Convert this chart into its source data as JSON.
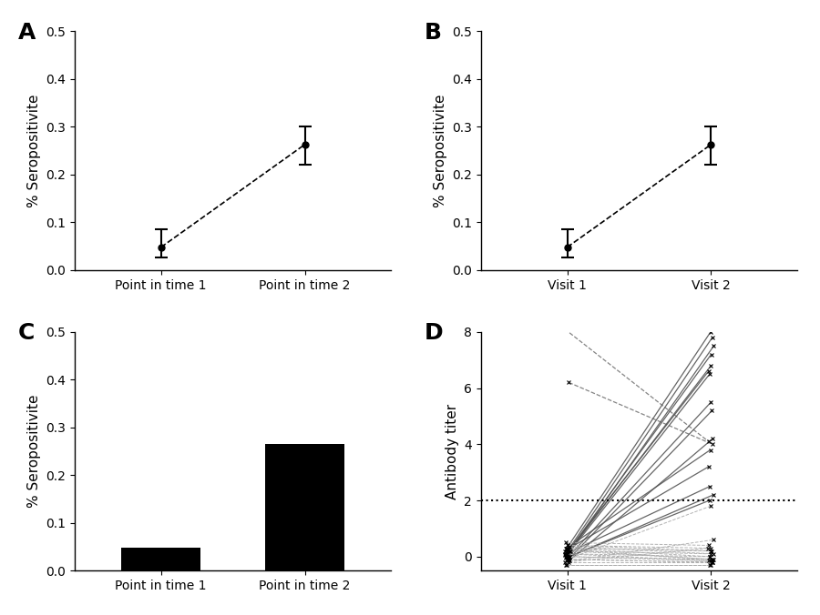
{
  "panel_A": {
    "label": "A",
    "x": [
      1,
      2
    ],
    "y": [
      0.048,
      0.263
    ],
    "yerr_lower": [
      0.022,
      0.042
    ],
    "yerr_upper": [
      0.038,
      0.038
    ],
    "xtick_labels": [
      "Point in time 1",
      "Point in time 2"
    ],
    "ylabel": "% Seropositivite",
    "ylim": [
      0,
      0.5
    ],
    "yticks": [
      0,
      0.1,
      0.2,
      0.3,
      0.4,
      0.5
    ]
  },
  "panel_B": {
    "label": "B",
    "x": [
      1,
      2
    ],
    "y": [
      0.048,
      0.263
    ],
    "yerr_lower": [
      0.022,
      0.042
    ],
    "yerr_upper": [
      0.038,
      0.038
    ],
    "xtick_labels": [
      "Visit 1",
      "Visit 2"
    ],
    "ylabel": "% Seropositivite",
    "ylim": [
      0,
      0.5
    ],
    "yticks": [
      0,
      0.1,
      0.2,
      0.3,
      0.4,
      0.5
    ]
  },
  "panel_C": {
    "label": "C",
    "categories": [
      "Point in time 1",
      "Point in time 2"
    ],
    "values": [
      0.048,
      0.265
    ],
    "bar_color": "#000000",
    "ylabel": "% Seropositivite",
    "ylim": [
      0,
      0.5
    ],
    "yticks": [
      0,
      0.1,
      0.2,
      0.3,
      0.4,
      0.5
    ]
  },
  "panel_D": {
    "label": "D",
    "ylabel": "Antibody titer",
    "xtick_labels": [
      "Visit 1",
      "Visit 2"
    ],
    "ylim": [
      -0.5,
      8
    ],
    "yticks": [
      0,
      2,
      4,
      6,
      8
    ],
    "hline_y": 2.0,
    "visit1_values": [
      8.1,
      6.2,
      0.3,
      0.25,
      0.2,
      0.15,
      0.1,
      0.05,
      0.0,
      -0.05,
      -0.1,
      -0.15,
      0.3,
      0.2,
      0.1,
      0.0,
      -0.05,
      -0.1,
      -0.15,
      -0.2,
      0.4,
      0.35,
      0.3,
      0.25,
      0.2,
      0.1,
      0.0,
      -0.1,
      -0.2,
      -0.3,
      0.5,
      0.4,
      0.3,
      0.2,
      0.1,
      0.0,
      -0.1,
      -0.3
    ],
    "visit2_values": [
      4.1,
      4.0,
      8.0,
      7.8,
      7.5,
      7.2,
      6.8,
      6.6,
      6.5,
      5.5,
      5.2,
      4.2,
      3.8,
      3.2,
      2.5,
      2.2,
      2.0,
      1.8,
      0.6,
      0.3,
      0.2,
      0.1,
      0.0,
      -0.1,
      -0.1,
      -0.15,
      -0.15,
      -0.2,
      -0.2,
      -0.3,
      0.4,
      0.3,
      0.2,
      0.1,
      0.0,
      -0.1,
      -0.2,
      -0.3
    ],
    "seroconvert": [
      false,
      false,
      true,
      true,
      true,
      true,
      true,
      true,
      true,
      true,
      true,
      true,
      true,
      true,
      true,
      true,
      true,
      false,
      false,
      false,
      false,
      false,
      false,
      false,
      false,
      false,
      false,
      false,
      false,
      false,
      false,
      false,
      false,
      false,
      false,
      false,
      false,
      false
    ]
  }
}
